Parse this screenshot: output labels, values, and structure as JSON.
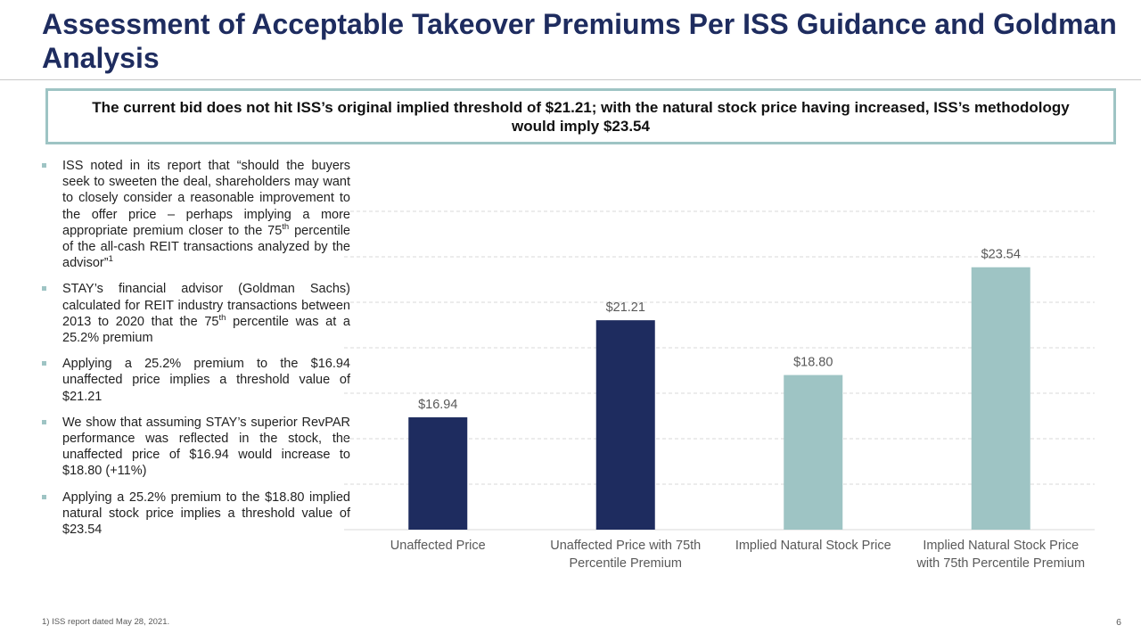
{
  "slide": {
    "title": "Assessment of Acceptable Takeover Premiums Per ISS Guidance and Goldman Analysis",
    "callout": "The current bid does not hit ISS’s original implied threshold of $21.21; with the natural stock price having increased, ISS’s methodology would imply $23.54",
    "bullets": [
      {
        "pre": "ISS noted in its report that “should the buyers seek to sweeten the deal, shareholders may want to closely consider a reasonable improvement to the offer price – perhaps implying a more appropriate premium closer to the 75",
        "sup": "th",
        "post": " percentile of the all-cash REIT transactions analyzed by the advisor”",
        "sup2": "1"
      },
      {
        "pre": "STAY’s financial advisor (Goldman Sachs) calculated for REIT industry transactions between 2013 to 2020 that the 75",
        "sup": "th",
        "post": " percentile was at a 25.2% premium",
        "sup2": ""
      },
      {
        "pre": "Applying a 25.2% premium to the $16.94 unaffected price implies a threshold value of $21.21",
        "sup": "",
        "post": "",
        "sup2": ""
      },
      {
        "pre": "We show that assuming STAY’s superior RevPAR performance was reflected in the stock, the unaffected price of $16.94 would increase to $18.80 (+11%)",
        "sup": "",
        "post": "",
        "sup2": ""
      },
      {
        "pre": "Applying a 25.2% premium to the $18.80 implied natural stock price implies a threshold value of $23.54",
        "sup": "",
        "post": "",
        "sup2": ""
      }
    ],
    "footnote": "1) ISS  report dated May 28, 2021.",
    "page_number": "6"
  },
  "chart_data": {
    "type": "bar",
    "categories": [
      "Unaffected Price",
      "Unaffected Price with 75th Percentile Premium",
      "Implied Natural Stock Price",
      "Implied Natural Stock Price with 75th Percentile Premium"
    ],
    "category_lines": [
      [
        "Unaffected Price"
      ],
      [
        "Unaffected Price with 75th",
        "Percentile Premium"
      ],
      [
        "Implied Natural Stock Price"
      ],
      [
        "Implied Natural Stock Price",
        "with 75th Percentile Premium"
      ]
    ],
    "values": [
      16.94,
      21.21,
      18.8,
      23.54
    ],
    "data_labels": [
      "$16.94",
      "$21.21",
      "$18.80",
      "$23.54"
    ],
    "colors": [
      "#1e2c5f",
      "#1e2c5f",
      "#9ec4c4",
      "#9ec4c4"
    ],
    "ylim": [
      12,
      26
    ],
    "gridlines": true,
    "title": "",
    "xlabel": "",
    "ylabel": ""
  }
}
